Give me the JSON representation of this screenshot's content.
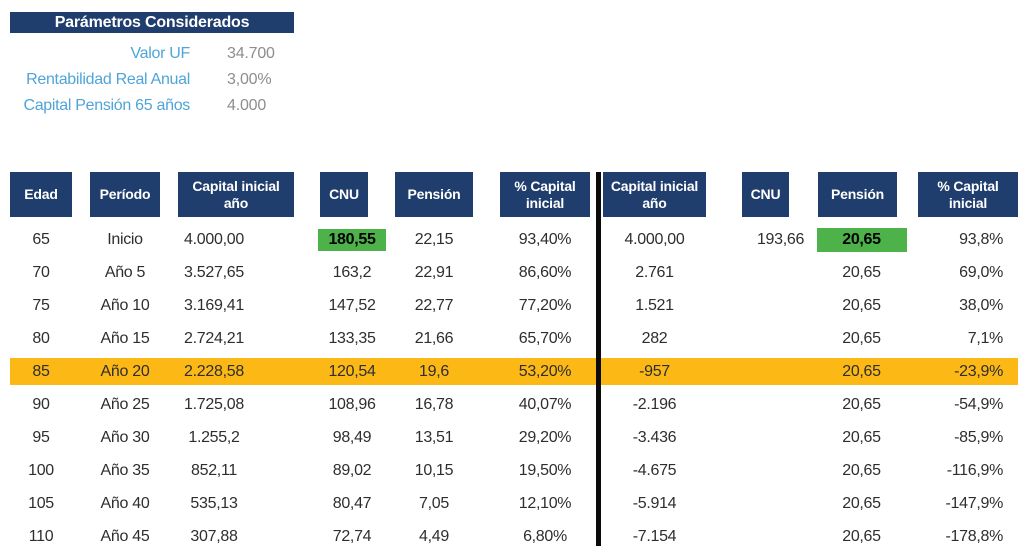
{
  "colors": {
    "navy": "#1f3d6d",
    "label_blue": "#4fa4d9",
    "value_gray": "#8b8d90",
    "highlight_green": "#4eb24b",
    "highlight_orange": "#fcb815",
    "divider_black": "#0b0b0b"
  },
  "params": {
    "title": "Parámetros Considerados",
    "rows": [
      {
        "label": "Valor UF",
        "value": "34.700"
      },
      {
        "label": "Rentabilidad Real Anual",
        "value": "3,00%"
      },
      {
        "label": "Capital Pensión 65 años",
        "value": "4.000"
      }
    ]
  },
  "table": {
    "headers_left": [
      "Edad",
      "Período",
      "Capital inicial año",
      "CNU",
      "Pensión",
      "% Capital inicial"
    ],
    "headers_right": [
      "Capital inicial año",
      "CNU",
      "Pensión",
      "% Capital inicial"
    ],
    "rows": [
      {
        "edad": "65",
        "periodo": "Inicio",
        "cap_ini": "4.000,00",
        "cnu": "180,55",
        "pension": "22,15",
        "pct": "93,40%",
        "cap_ini_r": "4.000,00",
        "cnu_r": "193,66",
        "pension_r": "20,65",
        "pct_r": "93,8%",
        "cnu_highlight": true,
        "pension_r_highlight": true
      },
      {
        "edad": "70",
        "periodo": "Año 5",
        "cap_ini": "3.527,65",
        "cnu": "163,2",
        "pension": "22,91",
        "pct": "86,60%",
        "cap_ini_r": "2.761",
        "cnu_r": "",
        "pension_r": "20,65",
        "pct_r": "69,0%"
      },
      {
        "edad": "75",
        "periodo": "Año 10",
        "cap_ini": "3.169,41",
        "cnu": "147,52",
        "pension": "22,77",
        "pct": "77,20%",
        "cap_ini_r": "1.521",
        "cnu_r": "",
        "pension_r": "20,65",
        "pct_r": "38,0%"
      },
      {
        "edad": "80",
        "periodo": "Año 15",
        "cap_ini": "2.724,21",
        "cnu": "133,35",
        "pension": "21,66",
        "pct": "65,70%",
        "cap_ini_r": "282",
        "cnu_r": "",
        "pension_r": "20,65",
        "pct_r": "7,1%"
      },
      {
        "edad": "85",
        "periodo": "Año 20",
        "cap_ini": "2.228,58",
        "cnu": "120,54",
        "pension": "19,6",
        "pct": "53,20%",
        "cap_ini_r": "-957",
        "cnu_r": "",
        "pension_r": "20,65",
        "pct_r": "-23,9%",
        "row_highlight": true
      },
      {
        "edad": "90",
        "periodo": "Año 25",
        "cap_ini": "1.725,08",
        "cnu": "108,96",
        "pension": "16,78",
        "pct": "40,07%",
        "cap_ini_r": "-2.196",
        "cnu_r": "",
        "pension_r": "20,65",
        "pct_r": "-54,9%"
      },
      {
        "edad": "95",
        "periodo": "Año 30",
        "cap_ini": "1.255,2",
        "cnu": "98,49",
        "pension": "13,51",
        "pct": "29,20%",
        "cap_ini_r": "-3.436",
        "cnu_r": "",
        "pension_r": "20,65",
        "pct_r": "-85,9%"
      },
      {
        "edad": "100",
        "periodo": "Año 35",
        "cap_ini": "852,11",
        "cnu": "89,02",
        "pension": "10,15",
        "pct": "19,50%",
        "cap_ini_r": "-4.675",
        "cnu_r": "",
        "pension_r": "20,65",
        "pct_r": "-116,9%"
      },
      {
        "edad": "105",
        "periodo": "Año 40",
        "cap_ini": "535,13",
        "cnu": "80,47",
        "pension": "7,05",
        "pct": "12,10%",
        "cap_ini_r": "-5.914",
        "cnu_r": "",
        "pension_r": "20,65",
        "pct_r": "-147,9%"
      },
      {
        "edad": "110",
        "periodo": "Año 45",
        "cap_ini": "307,88",
        "cnu": "72,74",
        "pension": "4,49",
        "pct": "6,80%",
        "cap_ini_r": "-7.154",
        "cnu_r": "",
        "pension_r": "20,65",
        "pct_r": "-178,8%"
      }
    ]
  }
}
